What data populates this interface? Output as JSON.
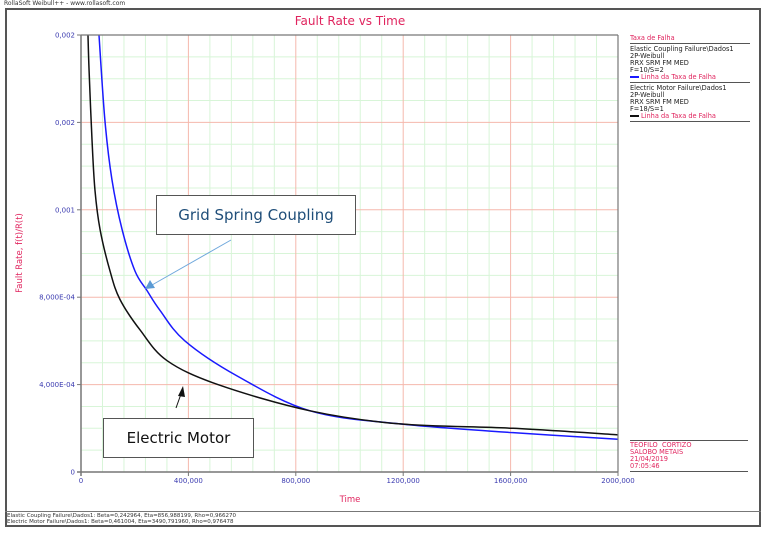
{
  "window": {
    "title": "RollaSoft Weibull++ - www.rollasoft.com"
  },
  "chart_data": {
    "type": "line",
    "title": "Fault Rate vs Time",
    "xlabel": "Time",
    "ylabel": "Fault Rate, f(t)/R(t)",
    "xlim": [
      0,
      2000000
    ],
    "ylim": [
      0,
      0.002
    ],
    "grid": true,
    "x_ticks": [
      {
        "value": 0,
        "label": "0"
      },
      {
        "value": 400000,
        "label": "400,000"
      },
      {
        "value": 800000,
        "label": "800,000"
      },
      {
        "value": 1200000,
        "label": "1200,000"
      },
      {
        "value": 1600000,
        "label": "1600,000"
      },
      {
        "value": 2000000,
        "label": "2000,000"
      }
    ],
    "y_ticks": [
      {
        "value": 0,
        "label": "0"
      },
      {
        "value": 0.0004,
        "label": "4,000E-04"
      },
      {
        "value": 0.0008,
        "label": "8,000E-04"
      },
      {
        "value": 0.0012,
        "label": "0,001"
      },
      {
        "value": 0.0016,
        "label": "0,002"
      },
      {
        "value": 0.002,
        "label": "0,002"
      }
    ],
    "legend_position": "right",
    "series": [
      {
        "name": "Elastic Coupling Failure\\Dados1",
        "color": "#1a1aff",
        "x": [
          67000,
          89000,
          115000,
          153000,
          201000,
          246000,
          294000,
          387000,
          581000,
          853000,
          1188000,
          1609000,
          2000000
        ],
        "y": [
          0.002,
          0.00161,
          0.00134,
          0.00111,
          0.00092,
          0.00083,
          0.00074,
          0.0006,
          0.00044,
          0.00028,
          0.00022,
          0.00018,
          0.00015
        ]
      },
      {
        "name": "Electric Motor Failure\\Dados1",
        "color": "#111111",
        "x": [
          26000,
          30000,
          41000,
          52000,
          71000,
          108000,
          145000,
          220000,
          320000,
          510000,
          853000,
          1188000,
          1609000,
          2000000
        ],
        "y": [
          0.002,
          0.00184,
          0.00152,
          0.00129,
          0.00111,
          0.00092,
          0.00079,
          0.00065,
          0.00051,
          0.0004,
          0.00028,
          0.00022,
          0.0002,
          0.00017
        ]
      }
    ],
    "annotations": [
      {
        "text": "Grid Spring Coupling",
        "points_to": "Elastic Coupling Failure\\Dados1"
      },
      {
        "text": "Electric Motor",
        "points_to": "Electric Motor Failure\\Dados1"
      }
    ]
  },
  "legend": {
    "header": "Taxa de Falha",
    "groups": [
      {
        "name": "Elastic Coupling Failure\\Dados1",
        "dist": "2P-Weibull",
        "method": "RRX SRM FM MED",
        "counts": "F=10/S=2",
        "line_label": "Linha da Taxa de Falha",
        "color": "#1a1aff"
      },
      {
        "name": "Electric Motor Failure\\Dados1",
        "dist": "2P-Weibull",
        "method": "RRX SRM FM MED",
        "counts": "F=18/S=1",
        "line_label": "Linha da Taxa de Falha",
        "color": "#111111"
      }
    ]
  },
  "stamp": {
    "user": "TEOFILO  CORTIZO",
    "company": "SALOBO METAIS",
    "date": "21/04/2019",
    "time": "07:05:46"
  },
  "footer": {
    "lines": [
      "Elastic Coupling Failure\\Dados1: Beta=0,242964, Eta=856,988199, Rho=0,966270",
      "Electric Motor Failure\\Dados1: Beta=0,461004, Eta=3490,791960, Rho=0,976478"
    ]
  },
  "colors": {
    "accent": "#e0245e",
    "axis_label": "#3b3bb0",
    "major_grid": "#f5b8ad",
    "minor_grid": "#d8f5d8"
  }
}
